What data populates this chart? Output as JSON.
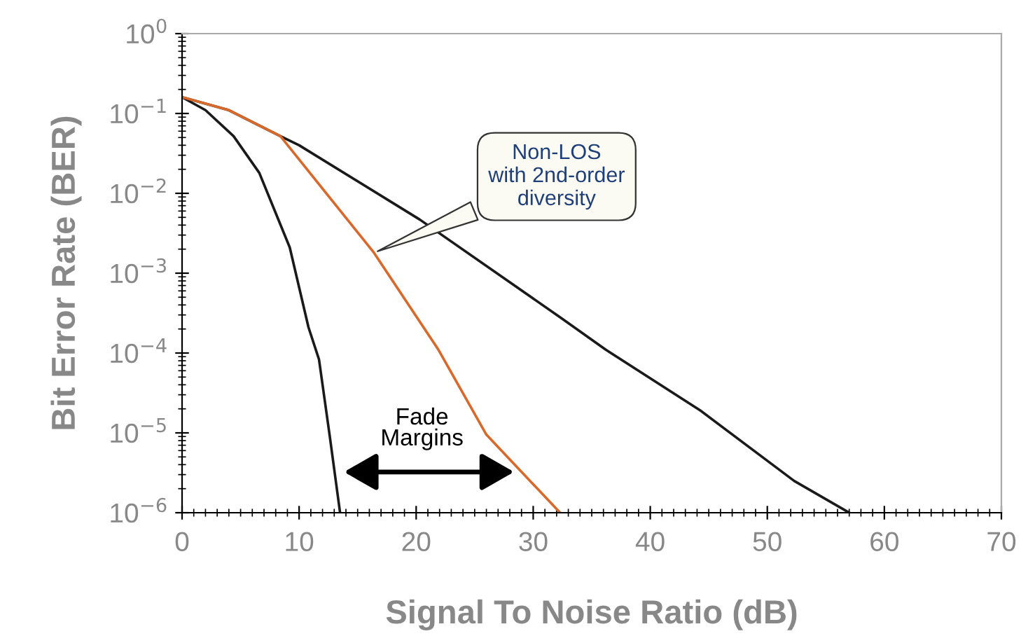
{
  "chart_data": {
    "type": "line",
    "xlabel": "Signal To Noise Ratio (dB)",
    "ylabel": "Bit Error Rate (BER)",
    "log": "y",
    "grid": false,
    "legend": false,
    "marker": "none",
    "line_style": "solid",
    "xlim": [
      0,
      70
    ],
    "xticks": [
      0,
      10,
      20,
      30,
      40,
      50,
      60,
      70
    ],
    "ylim": [
      1e-06,
      1
    ],
    "yticks": [
      {
        "value": 1e-06,
        "label": "10$^{−6}$"
      },
      {
        "value": 1e-05,
        "label": "10$^{−5}$"
      },
      {
        "value": 0.0001,
        "label": "10$^{−4}$"
      },
      {
        "value": 0.001,
        "label": "10$^{−3}$"
      },
      {
        "value": 0.01,
        "label": "10$^{−2}$"
      },
      {
        "value": 0.1,
        "label": "10$^{−1}$"
      },
      {
        "value": 1,
        "label": "10$^{0}$"
      }
    ],
    "series": [
      {
        "color": "#1a1a1a",
        "x": [
          0,
          2,
          4.4,
          6.6,
          9.2,
          10.8,
          11.7,
          12.6,
          13.5
        ],
        "values": [
          0.16,
          0.11,
          0.052,
          0.018,
          0.0021,
          0.00021,
          8.3e-05,
          9.5e-06,
          1e-06
        ]
      },
      {
        "color": "#1a1a1a",
        "x": [
          0,
          4,
          8.4,
          10,
          20.3,
          32.3,
          36.2,
          44.3,
          52.3,
          57
        ],
        "values": [
          0.16,
          0.11,
          0.052,
          0.04,
          0.0047,
          0.00028,
          0.00011,
          1.9e-05,
          2.5e-06,
          1e-06
        ]
      },
      {
        "color": "#d9692a",
        "x": [
          0,
          4,
          8.4,
          16.4,
          21.9,
          26,
          32.3
        ],
        "values": [
          0.16,
          0.11,
          0.052,
          0.0018,
          0.00011,
          9.5e-06,
          1e-06
        ]
      }
    ],
    "annotations": [
      {
        "text": "Non-LOS\nwith 2nd-order\ndiversity",
        "x": 16.4,
        "y": 0.0018
      },
      "Fade\nMargins"
    ]
  }
}
